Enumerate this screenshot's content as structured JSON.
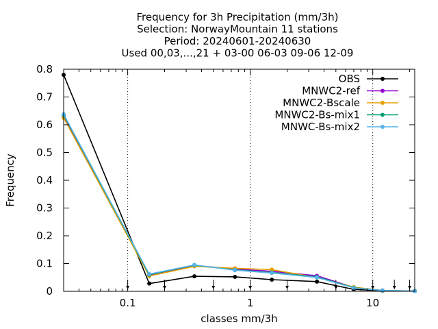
{
  "chart_data": {
    "type": "line",
    "title_lines": [
      "Frequency  for 3h Precipitation (mm/3h)",
      "Selection: NorwayMountain     11 stations",
      "Period: 20240601-20240630",
      "Used 00,03,...,21 + 03-00 06-03 09-06 12-09"
    ],
    "xlabel": "classes mm/3h",
    "ylabel": "Frequency",
    "x_scale": "log",
    "xlim": [
      0.03,
      22
    ],
    "ylim": [
      0,
      0.8
    ],
    "x_ticks": [
      {
        "value": 0.1,
        "label": "0.1"
      },
      {
        "value": 1,
        "label": "1"
      },
      {
        "value": 10,
        "label": "10"
      }
    ],
    "y_ticks": [
      {
        "value": 0,
        "label": "0"
      },
      {
        "value": 0.1,
        "label": "0.1"
      },
      {
        "value": 0.2,
        "label": "0.2"
      },
      {
        "value": 0.3,
        "label": "0.3"
      },
      {
        "value": 0.4,
        "label": "0.4"
      },
      {
        "value": 0.5,
        "label": "0.5"
      },
      {
        "value": 0.6,
        "label": "0.6"
      },
      {
        "value": 0.7,
        "label": "0.7"
      },
      {
        "value": 0.8,
        "label": "0.8"
      }
    ],
    "x": [
      0.03,
      0.15,
      0.35,
      0.75,
      1.5,
      3.5,
      7,
      12,
      22
    ],
    "class_limits": [
      0.1,
      0.2,
      0.5,
      1,
      2,
      5,
      10,
      15,
      20
    ],
    "legend_position": "top-right",
    "series": [
      {
        "name": "OBS",
        "color": "#000000",
        "marker": "circle",
        "values": [
          0.78,
          0.028,
          0.054,
          0.052,
          0.042,
          0.035,
          0.007,
          0.002,
          0.001
        ]
      },
      {
        "name": "MNWC2-ref",
        "color": "#9400d3",
        "marker": "circle",
        "values": [
          0.632,
          0.058,
          0.093,
          0.08,
          0.072,
          0.056,
          0.014,
          0.003,
          0.001
        ]
      },
      {
        "name": "MNWC2-Bscale",
        "color": "#e69f00",
        "marker": "circle",
        "values": [
          0.625,
          0.055,
          0.09,
          0.083,
          0.078,
          0.05,
          0.015,
          0.003,
          0.001
        ]
      },
      {
        "name": "MNWC2-Bs-mix1",
        "color": "#009e73",
        "marker": "circle",
        "values": [
          0.635,
          0.06,
          0.094,
          0.077,
          0.068,
          0.052,
          0.013,
          0.003,
          0.001
        ]
      },
      {
        "name": "MNWC-Bs-mix2",
        "color": "#56b4e9",
        "marker": "circle",
        "values": [
          0.638,
          0.062,
          0.095,
          0.076,
          0.066,
          0.05,
          0.012,
          0.003,
          0.001
        ]
      }
    ]
  }
}
